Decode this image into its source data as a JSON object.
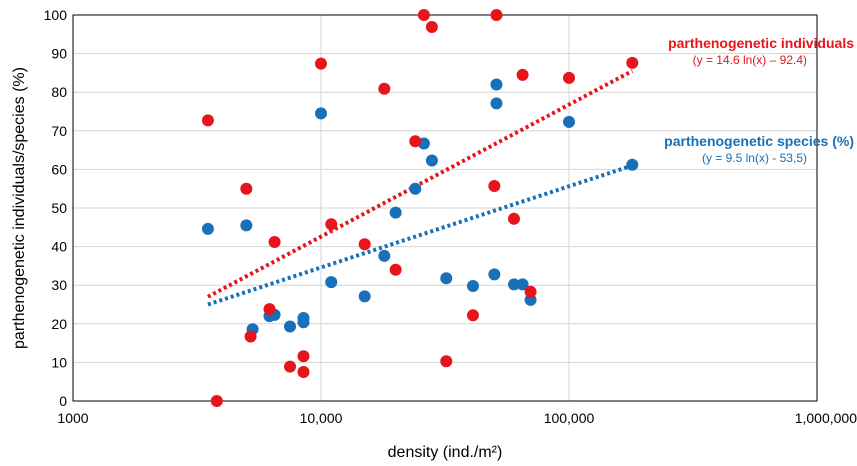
{
  "chart_data": {
    "type": "scatter",
    "xscale": "log",
    "xlim": [
      1000,
      1000000
    ],
    "ylim": [
      0,
      100
    ],
    "xlabel": "density (ind./m²)",
    "ylabel": "parthenogenetic individuals/species (%)",
    "x_tick_labels": [
      "1000",
      "10,000",
      "100,000",
      "1,000,000"
    ],
    "x_tick_values": [
      1000,
      10000,
      100000,
      1000000
    ],
    "y_ticks": [
      0,
      10,
      20,
      30,
      40,
      50,
      60,
      70,
      80,
      90,
      100
    ],
    "grid": true,
    "series": [
      {
        "name": "parthenogenetic individuals",
        "color": "#e8141c",
        "points": [
          [
            3500,
            72.7
          ],
          [
            3800,
            0
          ],
          [
            5000,
            55
          ],
          [
            5200,
            16.7
          ],
          [
            6200,
            23.8
          ],
          [
            6500,
            41.2
          ],
          [
            7500,
            8.9
          ],
          [
            8500,
            7.5
          ],
          [
            8500,
            11.6
          ],
          [
            10000,
            87.4
          ],
          [
            11000,
            45.8
          ],
          [
            15000,
            40.6
          ],
          [
            18000,
            80.9
          ],
          [
            20000,
            34
          ],
          [
            24000,
            67.3
          ],
          [
            26000,
            100
          ],
          [
            28000,
            96.9
          ],
          [
            32000,
            10.3
          ],
          [
            41000,
            22.2
          ],
          [
            50000,
            55.7
          ],
          [
            51000,
            100
          ],
          [
            60000,
            47.2
          ],
          [
            65000,
            84.5
          ],
          [
            70000,
            28.3
          ],
          [
            100000,
            83.7
          ],
          [
            180000,
            87.6
          ]
        ],
        "trendline": {
          "label": "parthenogenetic individuals",
          "equation": "(y = 14.6 ln(x) – 92.4)",
          "from": [
            3500,
            27
          ],
          "to": [
            180000,
            85.5
          ]
        }
      },
      {
        "name": "parthenogenetic species (%)",
        "color": "#1770b8",
        "points": [
          [
            3500,
            44.6
          ],
          [
            5000,
            45.5
          ],
          [
            5300,
            18.6
          ],
          [
            6200,
            22
          ],
          [
            6500,
            22.3
          ],
          [
            7500,
            19.3
          ],
          [
            8500,
            20.4
          ],
          [
            8500,
            21.5
          ],
          [
            10000,
            74.5
          ],
          [
            11000,
            30.8
          ],
          [
            15000,
            27.1
          ],
          [
            18000,
            37.6
          ],
          [
            20000,
            48.8
          ],
          [
            24000,
            55
          ],
          [
            26000,
            66.7
          ],
          [
            28000,
            62.3
          ],
          [
            32000,
            31.8
          ],
          [
            41000,
            29.8
          ],
          [
            50000,
            32.8
          ],
          [
            51000,
            82
          ],
          [
            51000,
            77.1
          ],
          [
            60000,
            30.2
          ],
          [
            65000,
            30.2
          ],
          [
            70000,
            26.2
          ],
          [
            100000,
            72.3
          ],
          [
            180000,
            61.2
          ]
        ],
        "trendline": {
          "label": "parthenogenetic species (%)",
          "equation": "(y = 9.5 ln(x) - 53,5)",
          "from": [
            3500,
            25
          ],
          "to": [
            180000,
            61
          ]
        }
      }
    ]
  }
}
